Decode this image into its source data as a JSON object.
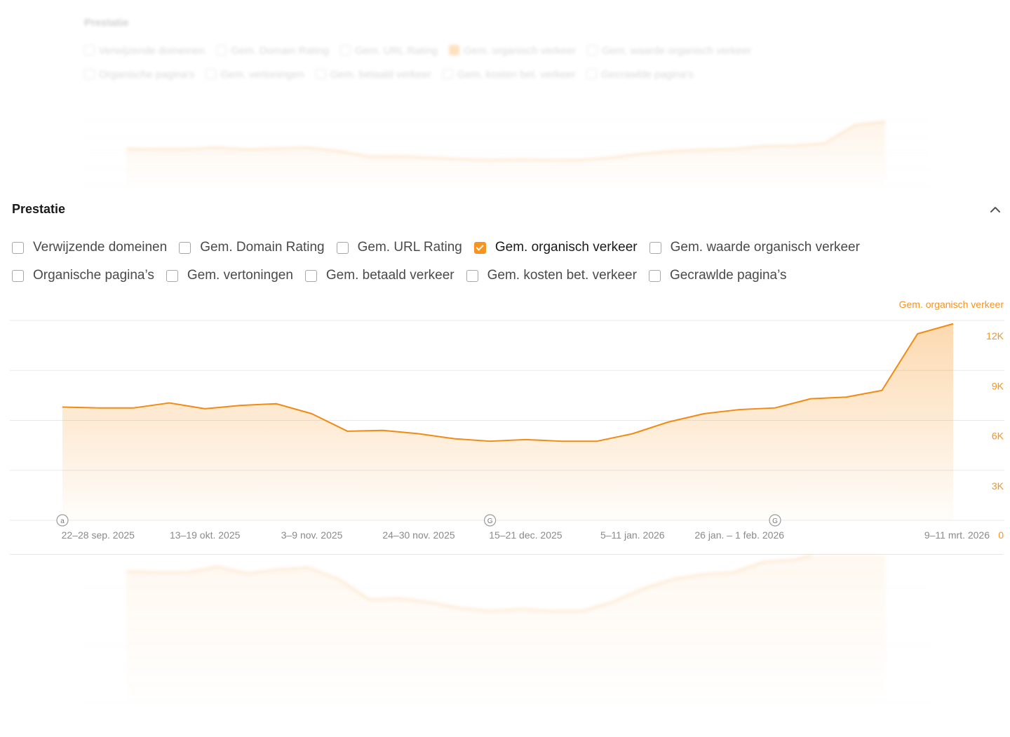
{
  "section_title": "Prestatie",
  "metrics_row1": [
    {
      "label": "Verwijzende domeinen",
      "checked": false
    },
    {
      "label": "Gem. Domain Rating",
      "checked": false
    },
    {
      "label": "Gem. URL Rating",
      "checked": false
    },
    {
      "label": "Gem. organisch verkeer",
      "checked": true
    },
    {
      "label": "Gem. waarde organisch verkeer",
      "checked": false
    }
  ],
  "metrics_row2": [
    {
      "label": "Organische pagina’s",
      "checked": false
    },
    {
      "label": "Gem. vertoningen",
      "checked": false
    },
    {
      "label": "Gem. betaald verkeer",
      "checked": false
    },
    {
      "label": "Gem. kosten bet. verkeer",
      "checked": false
    },
    {
      "label": "Gecrawlde pagina’s",
      "checked": false
    }
  ],
  "colors": {
    "accent": "#f7931e",
    "line": "#f38a12",
    "grid": "#e8e8e8",
    "axis_text": "#8a8a8a"
  },
  "icons": {
    "collapse": "chevron-up-icon",
    "annotation_a": "a",
    "annotation_g": "G"
  },
  "chart_data": {
    "type": "area",
    "legend": "Gem. organisch verkeer",
    "legend_position": "top-right",
    "grid": true,
    "ylim": [
      0,
      12000
    ],
    "y_ticks": [
      {
        "value": 12000,
        "label": "12K"
      },
      {
        "value": 9000,
        "label": "9K"
      },
      {
        "value": 6000,
        "label": "6K"
      },
      {
        "value": 3000,
        "label": "3K"
      },
      {
        "value": 0,
        "label": "0"
      }
    ],
    "x_tick_labels": [
      {
        "index": 1,
        "label": "22–28 sep. 2025"
      },
      {
        "index": 4,
        "label": "13–19 okt. 2025"
      },
      {
        "index": 7,
        "label": "3–9 nov. 2025"
      },
      {
        "index": 10,
        "label": "24–30 nov. 2025"
      },
      {
        "index": 13,
        "label": "15–21 dec. 2025"
      },
      {
        "index": 16,
        "label": "5–11 jan. 2026"
      },
      {
        "index": 19,
        "label": "26 jan. – 1 feb. 2026"
      },
      {
        "index": 25,
        "label": "9–11 mrt. 2026"
      }
    ],
    "annotations": [
      {
        "index": 0,
        "label": "a"
      },
      {
        "index": 12,
        "label": "G"
      },
      {
        "index": 20,
        "label": "G"
      }
    ],
    "series": [
      {
        "name": "Gem. organisch verkeer",
        "values": [
          6800,
          6750,
          6750,
          7050,
          6700,
          6900,
          7000,
          6400,
          5350,
          5400,
          5200,
          4900,
          4750,
          4850,
          4750,
          4750,
          5200,
          5900,
          6400,
          6650,
          6750,
          7300,
          7400,
          7800,
          11200,
          11800
        ]
      }
    ]
  }
}
